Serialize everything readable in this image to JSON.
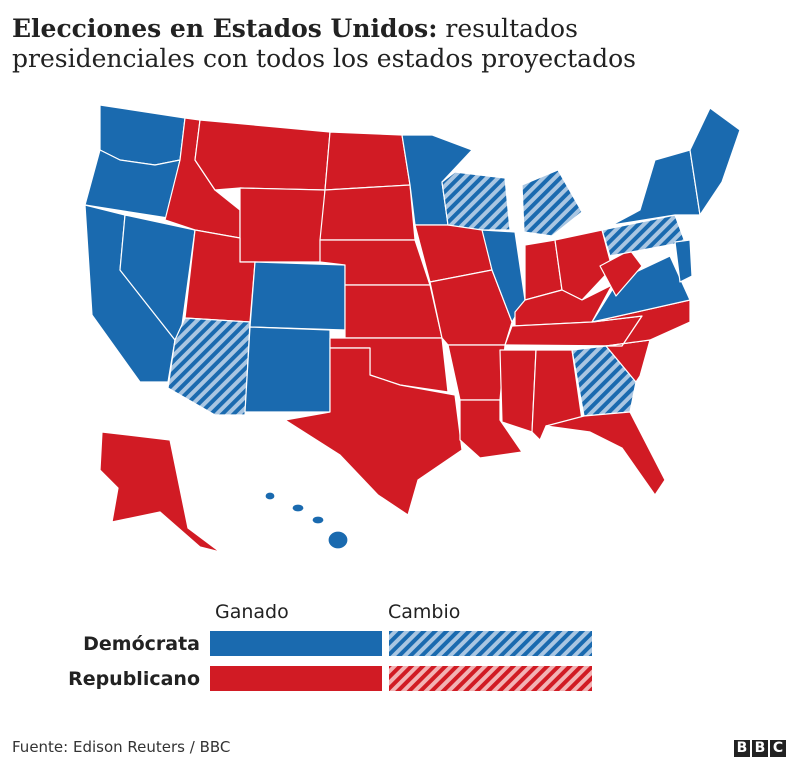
{
  "title_bold": "Elecciones en Estados Unidos:",
  "title_rest_1": "resultados",
  "title_rest_2": "presidenciales con todos los estados proyectados",
  "legend": {
    "columns": [
      "Ganado",
      "Cambio"
    ],
    "rows": [
      "Demócrata",
      "Republicano"
    ]
  },
  "source": "Fuente: Edison Reuters / BBC",
  "logo": [
    "B",
    "B",
    "C"
  ]
}
